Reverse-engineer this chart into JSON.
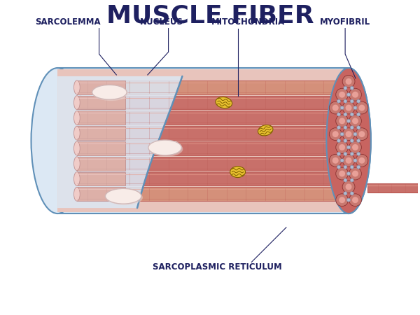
{
  "title": "MUSCLE FIBER",
  "title_fontsize": 26,
  "title_color": "#1e2060",
  "title_weight": "bold",
  "labels": {
    "sarcolemma": "SARCOLEMMA",
    "nucleus": "NUCLEUS",
    "mitochondria": "MITOCHONDRIA",
    "myofibril": "MYOFIBRIL",
    "sarcoplasmic_reticulum": "SARCOPLASMIC RETICULUM"
  },
  "label_fontsize": 8.5,
  "label_color": "#1e2060",
  "label_weight": "bold",
  "colors": {
    "background": "#ffffff",
    "tube_fill": "#c8706a",
    "tube_dark": "#b85550",
    "tube_light": "#e8a090",
    "tube_pink_left": "#d4907a",
    "tube_pink_bg": "#e8c4bc",
    "cross_bg": "#c86460",
    "cross_fill": "#c87870",
    "cross_inner": "#e8a098",
    "cross_stroke": "#8b3030",
    "sr_dot_fill": "#b0bcd0",
    "sr_dot_stroke": "#8090b0",
    "nucleus_fill": "#f8ece8",
    "nucleus_stroke": "#d0b8b8",
    "mito_fill": "#e8c030",
    "mito_stroke": "#806000",
    "mito_inner": "#c89820",
    "sarcolemma_fill": "#dce8f4",
    "sarcolemma_stroke": "#6090b8",
    "outer_stroke": "#6090b8",
    "line_color": "#1e2060",
    "stripe_color": "#b86060",
    "shadow_stripe": "#d09090"
  }
}
